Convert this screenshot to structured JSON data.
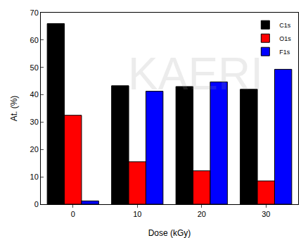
{
  "chart_data": {
    "type": "bar",
    "x_label": "Dose (kGy)",
    "y_label": "At. (%)",
    "categories": [
      "0",
      "10",
      "20",
      "30"
    ],
    "series": [
      {
        "name": "C1s",
        "color": "#000000",
        "values": [
          66.0,
          43.3,
          43.0,
          42.0
        ]
      },
      {
        "name": "O1s",
        "color": "#ff0000",
        "values": [
          32.5,
          15.5,
          12.2,
          8.5
        ]
      },
      {
        "name": "F1s",
        "color": "#0000ff",
        "values": [
          1.2,
          41.3,
          44.7,
          49.3
        ]
      }
    ],
    "ylim": [
      0,
      70
    ],
    "yticks": [
      0,
      10,
      20,
      30,
      40,
      50,
      60,
      70
    ],
    "grid": false,
    "legend": "upper right",
    "annotations": [
      "KAERI"
    ]
  }
}
